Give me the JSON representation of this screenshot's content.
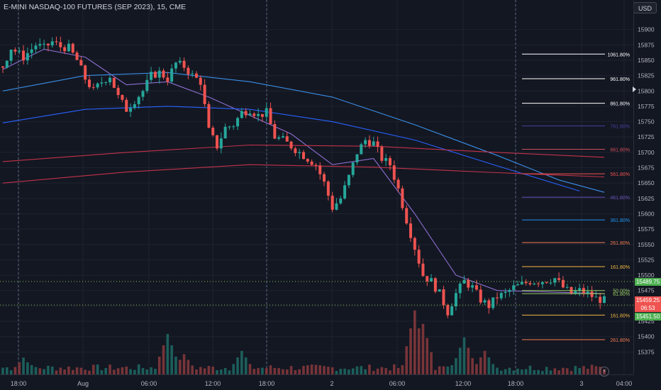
{
  "header": {
    "title": "E-MINI NASDAQ-100 FUTURES (SEP 2023), 15, CME",
    "currency": "USD"
  },
  "colors": {
    "background": "#131722",
    "up": "#26a69a",
    "down": "#ef5350",
    "grid": "#1f2330",
    "text": "#b2b5be"
  },
  "icons": {
    "alert": "lightning-icon",
    "scale": "arrow-right-icon"
  },
  "chart_data": {
    "type": "candlestick",
    "instrument": "E-MINI NASDAQ-100 FUTURES (SEP 2023)",
    "interval": "15",
    "exchange": "CME",
    "ylim": [
      15350,
      15925
    ],
    "y_ticks": [
      15375,
      15400,
      15425,
      15450,
      15475,
      15500,
      15525,
      15550,
      15575,
      15600,
      15625,
      15650,
      15675,
      15700,
      15725,
      15750,
      15775,
      15800,
      15825,
      15850,
      15875,
      15900
    ],
    "x_tick_labels": [
      "18:00",
      "Aug",
      "06:00",
      "12:00",
      "18:00",
      "2",
      "06:00",
      "12:00",
      "18:00",
      "3",
      "04:00"
    ],
    "session_dividers_at": [
      "18:00",
      "18:00",
      "18:00"
    ],
    "price_tags": [
      {
        "value": "15489.75",
        "color": "#4caf50"
      },
      {
        "value": "15459.25",
        "color": "#ef5350"
      },
      {
        "value": "06:53",
        "color": "#ef5350"
      },
      {
        "value": "15451.50",
        "color": "#4caf50"
      }
    ],
    "horizontal_lines": [
      15489.75,
      15451.5
    ],
    "fib_levels": [
      {
        "label": "1061.80%",
        "price": 15860,
        "color": "#ffffff"
      },
      {
        "label": "961.80%",
        "price": 15820,
        "color": "#ffffff"
      },
      {
        "label": "861.80%",
        "price": 15780,
        "color": "#ffffff"
      },
      {
        "label": "761.80%",
        "price": 15743,
        "color": "#4a3fa0"
      },
      {
        "label": "661.80%",
        "price": 15705,
        "color": "#d0505a"
      },
      {
        "label": "561.80%",
        "price": 15665,
        "color": "#ef5350"
      },
      {
        "label": "461.80%",
        "price": 15627,
        "color": "#6a52b8"
      },
      {
        "label": "361.80%",
        "price": 15590,
        "color": "#2196f3"
      },
      {
        "label": "261.80%",
        "price": 15553,
        "color": "#f57c52"
      },
      {
        "label": "161.80%",
        "price": 15514,
        "color": "#f5b942"
      },
      {
        "label": "50.00%",
        "price": 15475,
        "color": "#9ccc65"
      },
      {
        "label": "61.80%",
        "price": 15470,
        "color": "#9ccc65"
      },
      {
        "label": "161.80%",
        "price": 15435,
        "color": "#f5b942"
      },
      {
        "label": "261.80%",
        "price": 15395,
        "color": "#f57c52"
      }
    ],
    "close_path": [
      [
        0,
        15840
      ],
      [
        2,
        15870
      ],
      [
        5,
        15855
      ],
      [
        8,
        15875
      ],
      [
        10,
        15870
      ],
      [
        12,
        15880
      ],
      [
        14,
        15872
      ],
      [
        16,
        15870
      ],
      [
        18,
        15850
      ],
      [
        20,
        15820
      ],
      [
        22,
        15800
      ],
      [
        24,
        15815
      ],
      [
        26,
        15825
      ],
      [
        28,
        15790
      ],
      [
        30,
        15770
      ],
      [
        32,
        15785
      ],
      [
        34,
        15800
      ],
      [
        36,
        15825
      ],
      [
        38,
        15830
      ],
      [
        40,
        15820
      ],
      [
        42,
        15845
      ],
      [
        44,
        15840
      ],
      [
        46,
        15825
      ],
      [
        48,
        15815
      ],
      [
        50,
        15735
      ],
      [
        52,
        15710
      ],
      [
        54,
        15740
      ],
      [
        56,
        15745
      ],
      [
        58,
        15765
      ],
      [
        60,
        15770
      ],
      [
        62,
        15760
      ],
      [
        64,
        15765
      ],
      [
        66,
        15725
      ],
      [
        68,
        15720
      ],
      [
        70,
        15710
      ],
      [
        72,
        15700
      ],
      [
        74,
        15690
      ],
      [
        76,
        15680
      ],
      [
        78,
        15650
      ],
      [
        80,
        15610
      ],
      [
        82,
        15625
      ],
      [
        84,
        15660
      ],
      [
        86,
        15700
      ],
      [
        88,
        15720
      ],
      [
        90,
        15715
      ],
      [
        92,
        15690
      ],
      [
        94,
        15680
      ],
      [
        96,
        15640
      ],
      [
        98,
        15590
      ],
      [
        100,
        15545
      ],
      [
        102,
        15500
      ],
      [
        104,
        15490
      ],
      [
        106,
        15470
      ],
      [
        108,
        15440
      ],
      [
        110,
        15470
      ],
      [
        112,
        15490
      ],
      [
        114,
        15480
      ],
      [
        116,
        15460
      ],
      [
        118,
        15450
      ],
      [
        120,
        15465
      ],
      [
        122,
        15470
      ],
      [
        124,
        15480
      ],
      [
        126,
        15485
      ],
      [
        128,
        15490
      ],
      [
        130,
        15490
      ],
      [
        132,
        15492
      ],
      [
        134,
        15495
      ],
      [
        136,
        15480
      ],
      [
        138,
        15470
      ],
      [
        140,
        15475
      ],
      [
        142,
        15470
      ],
      [
        144,
        15462
      ],
      [
        146,
        15459
      ]
    ],
    "volume_peaks": [
      {
        "at": 5,
        "v": 0.25
      },
      {
        "at": 40,
        "v": 0.6
      },
      {
        "at": 44,
        "v": 0.3
      },
      {
        "at": 58,
        "v": 0.35
      },
      {
        "at": 100,
        "v": 0.95
      },
      {
        "at": 102,
        "v": 0.75
      },
      {
        "at": 112,
        "v": 0.55
      },
      {
        "at": 117,
        "v": 0.35
      }
    ],
    "moving_averages": [
      {
        "color": "#8e6fd1",
        "points": [
          [
            0,
            15835
          ],
          [
            10,
            15868
          ],
          [
            20,
            15855
          ],
          [
            30,
            15810
          ],
          [
            40,
            15815
          ],
          [
            50,
            15790
          ],
          [
            60,
            15760
          ],
          [
            70,
            15730
          ],
          [
            80,
            15680
          ],
          [
            90,
            15690
          ],
          [
            100,
            15600
          ],
          [
            110,
            15500
          ],
          [
            120,
            15475
          ],
          [
            146,
            15470
          ]
        ]
      },
      {
        "color": "#3a8ee6",
        "points": [
          [
            0,
            15800
          ],
          [
            20,
            15825
          ],
          [
            40,
            15830
          ],
          [
            60,
            15815
          ],
          [
            80,
            15790
          ],
          [
            100,
            15745
          ],
          [
            120,
            15695
          ],
          [
            135,
            15655
          ],
          [
            146,
            15635
          ]
        ]
      },
      {
        "color": "#2962ff",
        "points": [
          [
            0,
            15748
          ],
          [
            20,
            15770
          ],
          [
            40,
            15775
          ],
          [
            60,
            15770
          ],
          [
            80,
            15750
          ],
          [
            100,
            15720
          ],
          [
            120,
            15678
          ],
          [
            140,
            15637
          ]
        ]
      },
      {
        "color": "#c2334a",
        "points": [
          [
            0,
            15685
          ],
          [
            30,
            15700
          ],
          [
            60,
            15712
          ],
          [
            90,
            15710
          ],
          [
            120,
            15700
          ],
          [
            146,
            15692
          ]
        ]
      },
      {
        "color": "#c2334a",
        "points": [
          [
            0,
            15650
          ],
          [
            30,
            15668
          ],
          [
            60,
            15680
          ],
          [
            90,
            15676
          ],
          [
            120,
            15667
          ],
          [
            146,
            15660
          ]
        ]
      }
    ]
  }
}
